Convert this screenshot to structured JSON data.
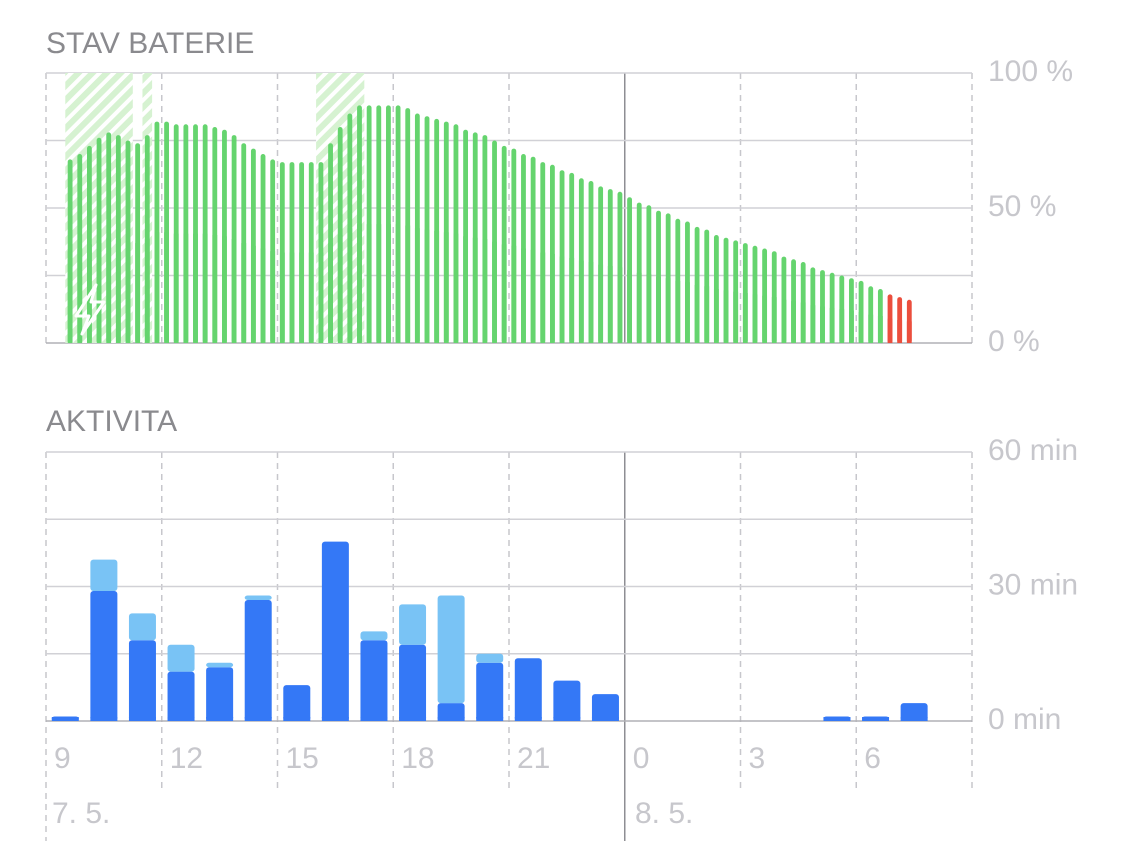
{
  "chart_data": [
    {
      "type": "bar",
      "title": "STAV BATERIE",
      "values": [
        null,
        null,
        68,
        70,
        73,
        76,
        78,
        77,
        75,
        74,
        77,
        82,
        82,
        81,
        81,
        81,
        81,
        80,
        79,
        77,
        74,
        72,
        70,
        68,
        67,
        67,
        67,
        67,
        67,
        74,
        80,
        85,
        88,
        88,
        88,
        88,
        88,
        87,
        85,
        84,
        83,
        82,
        81,
        79,
        78,
        77,
        75,
        73,
        72,
        70,
        69,
        67,
        66,
        64,
        63,
        61,
        60,
        58,
        57,
        56,
        54,
        52,
        51,
        49,
        48,
        46,
        45,
        43,
        42,
        40,
        39,
        38,
        37,
        36,
        35,
        34,
        32,
        31,
        30,
        28,
        27,
        26,
        25,
        24,
        23,
        21,
        20,
        18,
        17,
        16,
        null,
        null,
        null,
        null,
        null,
        null
      ],
      "color": "#65d46e",
      "low_color": "#eb4e3d",
      "low_threshold": 20,
      "charging": [
        [
          2,
          8
        ],
        [
          10,
          10
        ],
        [
          28,
          32
        ]
      ],
      "ylim": [
        0,
        100
      ],
      "yticks": [
        {
          "value": 0,
          "label": "0 %"
        },
        {
          "value": 50,
          "label": "50 %"
        },
        {
          "value": 100,
          "label": "100 %"
        }
      ],
      "grid_lines": [
        0,
        25,
        50,
        75,
        100
      ]
    },
    {
      "type": "stacked_bar",
      "title": "AKTIVITA",
      "categories": [
        "9",
        null,
        null,
        "12",
        null,
        null,
        "15",
        null,
        null,
        "18",
        null,
        null,
        "21",
        null,
        null,
        "0",
        null,
        null,
        "3",
        null,
        null,
        "6",
        null,
        null
      ],
      "series": [
        {
          "color": "#3478f6",
          "values": [
            1,
            29,
            18,
            11,
            12,
            27,
            8,
            40,
            18,
            17,
            4,
            13,
            14,
            9,
            6,
            0,
            0,
            0,
            0,
            0,
            1,
            1,
            4,
            0
          ]
        },
        {
          "color": "#79c3f5",
          "values": [
            0,
            7,
            6,
            6,
            1,
            1,
            0,
            0,
            2,
            9,
            24,
            2,
            0,
            0,
            0,
            0,
            0,
            0,
            0,
            0,
            0,
            0,
            0,
            0
          ]
        }
      ],
      "ylim": [
        0,
        60
      ],
      "yticks": [
        {
          "value": 0,
          "label": "0 min"
        },
        {
          "value": 30,
          "label": "30 min"
        },
        {
          "value": 60,
          "label": "60 min"
        }
      ],
      "grid_lines": [
        0,
        15,
        30,
        45,
        60
      ],
      "dates": [
        "7. 5.",
        "8. 5."
      ]
    }
  ]
}
